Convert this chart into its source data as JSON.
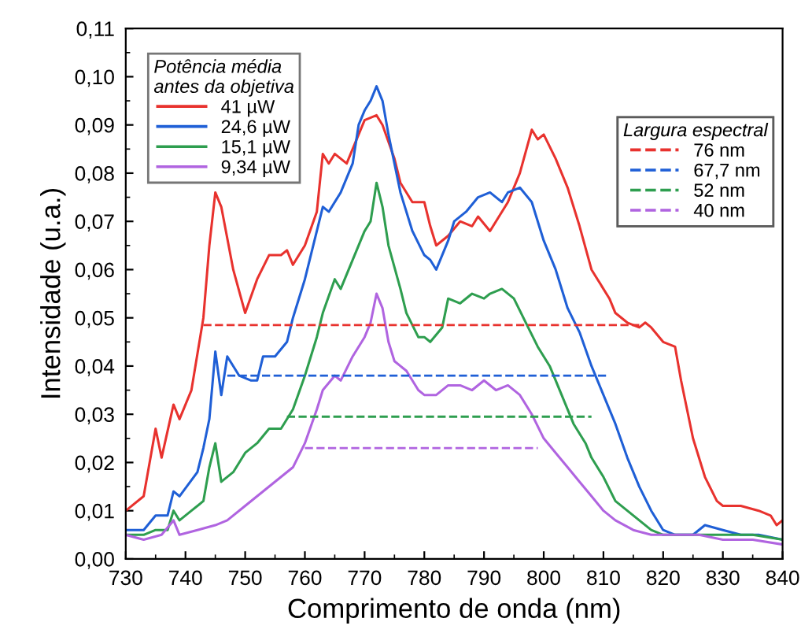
{
  "chart_data": {
    "type": "line",
    "xlabel": "Comprimento de onda (nm)",
    "ylabel": "Intensidade (u.a.)",
    "legend": [
      "top left",
      "right"
    ],
    "legend_title": [
      "Potência média\nantes da objetiva",
      "Largura espectral"
    ],
    "xlim": [
      730,
      840
    ],
    "xticks": [
      730,
      740,
      750,
      760,
      770,
      780,
      790,
      800,
      810,
      820,
      830,
      840
    ],
    "ylim": [
      0,
      0.11
    ],
    "yticks": [
      {
        "value": 0,
        "label": "0,00"
      },
      {
        "value": 0.01,
        "label": "0,01"
      },
      {
        "value": 0.02,
        "label": "0,02"
      },
      {
        "value": 0.03,
        "label": "0,03"
      },
      {
        "value": 0.04,
        "label": "0,04"
      },
      {
        "value": 0.05,
        "label": "0,05"
      },
      {
        "value": 0.06,
        "label": "0,06"
      },
      {
        "value": 0.07,
        "label": "0,07"
      },
      {
        "value": 0.08,
        "label": "0,08"
      },
      {
        "value": 0.09,
        "label": "0,09"
      },
      {
        "value": 0.1,
        "label": "0,10"
      },
      {
        "value": 0.11,
        "label": "0,11"
      }
    ],
    "grid": false,
    "marker": "none",
    "series": [
      {
        "name": "41 µW",
        "color": "#e8322e",
        "line_style": "solid",
        "x": [
          730,
          733,
          735,
          736,
          738,
          739,
          741,
          743,
          744,
          745,
          746,
          748,
          750,
          752,
          754,
          756,
          757,
          758,
          760,
          762,
          763,
          764,
          765,
          767,
          769,
          770,
          772,
          773,
          775,
          776,
          778,
          780,
          781,
          782,
          784,
          786,
          788,
          789,
          791,
          792,
          794,
          796,
          798,
          799,
          800,
          802,
          804,
          806,
          808,
          809,
          811,
          812,
          814,
          816,
          817,
          818,
          820,
          822,
          823,
          825,
          827,
          829,
          830,
          833,
          836,
          838,
          839,
          840
        ],
        "values": [
          0.01,
          0.013,
          0.027,
          0.021,
          0.032,
          0.029,
          0.035,
          0.05,
          0.065,
          0.076,
          0.073,
          0.06,
          0.051,
          0.058,
          0.063,
          0.063,
          0.064,
          0.061,
          0.065,
          0.072,
          0.084,
          0.082,
          0.084,
          0.082,
          0.088,
          0.091,
          0.092,
          0.09,
          0.083,
          0.078,
          0.074,
          0.074,
          0.069,
          0.065,
          0.067,
          0.07,
          0.069,
          0.071,
          0.068,
          0.07,
          0.074,
          0.08,
          0.089,
          0.087,
          0.088,
          0.083,
          0.077,
          0.069,
          0.06,
          0.058,
          0.054,
          0.051,
          0.049,
          0.048,
          0.049,
          0.048,
          0.045,
          0.044,
          0.037,
          0.025,
          0.017,
          0.012,
          0.011,
          0.011,
          0.01,
          0.009,
          0.007,
          0.008
        ]
      },
      {
        "name": "24,6 µW",
        "color": "#1f5fd6",
        "line_style": "solid",
        "x": [
          730,
          733,
          735,
          737,
          738,
          739,
          742,
          743,
          744,
          745,
          746,
          747,
          748,
          749,
          751,
          752,
          753,
          755,
          757,
          758,
          760,
          762,
          763,
          764,
          766,
          768,
          769,
          770,
          771,
          772,
          773,
          774,
          776,
          778,
          780,
          781,
          782,
          784,
          785,
          787,
          789,
          791,
          793,
          794,
          796,
          798,
          800,
          802,
          804,
          806,
          808,
          810,
          812,
          814,
          816,
          818,
          820,
          822,
          825,
          827,
          830,
          833,
          836,
          840
        ],
        "values": [
          0.006,
          0.006,
          0.009,
          0.009,
          0.014,
          0.013,
          0.018,
          0.023,
          0.029,
          0.043,
          0.034,
          0.042,
          0.04,
          0.038,
          0.037,
          0.037,
          0.042,
          0.042,
          0.045,
          0.05,
          0.058,
          0.068,
          0.073,
          0.072,
          0.076,
          0.082,
          0.09,
          0.093,
          0.095,
          0.098,
          0.095,
          0.088,
          0.076,
          0.068,
          0.063,
          0.062,
          0.06,
          0.066,
          0.07,
          0.072,
          0.075,
          0.076,
          0.074,
          0.076,
          0.077,
          0.074,
          0.066,
          0.06,
          0.052,
          0.047,
          0.04,
          0.034,
          0.028,
          0.021,
          0.015,
          0.01,
          0.006,
          0.005,
          0.005,
          0.007,
          0.006,
          0.005,
          0.005,
          0.004
        ]
      },
      {
        "name": "15,1 µW",
        "color": "#2e9e4f",
        "line_style": "solid",
        "x": [
          730,
          733,
          735,
          737,
          738,
          739,
          741,
          743,
          744,
          745,
          746,
          748,
          750,
          752,
          754,
          756,
          758,
          760,
          762,
          763,
          765,
          766,
          768,
          770,
          771,
          772,
          773,
          774,
          776,
          777,
          779,
          780,
          781,
          783,
          784,
          786,
          788,
          790,
          791,
          793,
          795,
          797,
          799,
          801,
          803,
          805,
          807,
          808,
          810,
          812,
          814,
          816,
          818,
          820,
          825,
          830,
          835,
          840
        ],
        "values": [
          0.005,
          0.005,
          0.006,
          0.006,
          0.01,
          0.008,
          0.01,
          0.012,
          0.019,
          0.024,
          0.016,
          0.018,
          0.022,
          0.024,
          0.027,
          0.027,
          0.031,
          0.038,
          0.046,
          0.051,
          0.058,
          0.056,
          0.062,
          0.068,
          0.07,
          0.078,
          0.073,
          0.065,
          0.056,
          0.051,
          0.046,
          0.046,
          0.045,
          0.048,
          0.054,
          0.053,
          0.055,
          0.054,
          0.055,
          0.056,
          0.054,
          0.049,
          0.044,
          0.04,
          0.034,
          0.028,
          0.024,
          0.021,
          0.017,
          0.012,
          0.01,
          0.008,
          0.006,
          0.005,
          0.005,
          0.005,
          0.005,
          0.004
        ]
      },
      {
        "name": "9,34 µW",
        "color": "#b064e0",
        "line_style": "solid",
        "x": [
          730,
          733,
          736,
          738,
          739,
          742,
          745,
          747,
          750,
          752,
          754,
          756,
          758,
          760,
          762,
          763,
          765,
          766,
          768,
          770,
          771,
          772,
          773,
          774,
          775,
          776,
          777,
          779,
          780,
          782,
          784,
          786,
          788,
          790,
          792,
          794,
          796,
          798,
          800,
          802,
          804,
          806,
          808,
          810,
          812,
          815,
          818,
          822,
          826,
          830,
          835,
          840
        ],
        "values": [
          0.005,
          0.004,
          0.005,
          0.008,
          0.005,
          0.006,
          0.007,
          0.008,
          0.011,
          0.013,
          0.015,
          0.017,
          0.019,
          0.024,
          0.031,
          0.035,
          0.038,
          0.037,
          0.042,
          0.046,
          0.049,
          0.055,
          0.052,
          0.045,
          0.041,
          0.04,
          0.039,
          0.035,
          0.034,
          0.034,
          0.036,
          0.036,
          0.035,
          0.037,
          0.035,
          0.036,
          0.034,
          0.03,
          0.025,
          0.022,
          0.019,
          0.016,
          0.013,
          0.01,
          0.008,
          0.006,
          0.005,
          0.005,
          0.005,
          0.004,
          0.004,
          0.003
        ]
      },
      {
        "name": "76 nm",
        "color": "#e8322e",
        "line_style": "dashed",
        "x": [
          743,
          816
        ],
        "values": [
          0.0485,
          0.0485
        ]
      },
      {
        "name": "67,7 nm",
        "color": "#1f5fd6",
        "line_style": "dashed",
        "x": [
          747,
          811
        ],
        "values": [
          0.038,
          0.038
        ]
      },
      {
        "name": "52 nm",
        "color": "#2e9e4f",
        "line_style": "dashed",
        "x": [
          757,
          808
        ],
        "values": [
          0.0295,
          0.0295
        ]
      },
      {
        "name": "40 nm",
        "color": "#b064e0",
        "line_style": "dashed",
        "x": [
          760,
          799
        ],
        "values": [
          0.023,
          0.023
        ]
      }
    ]
  }
}
